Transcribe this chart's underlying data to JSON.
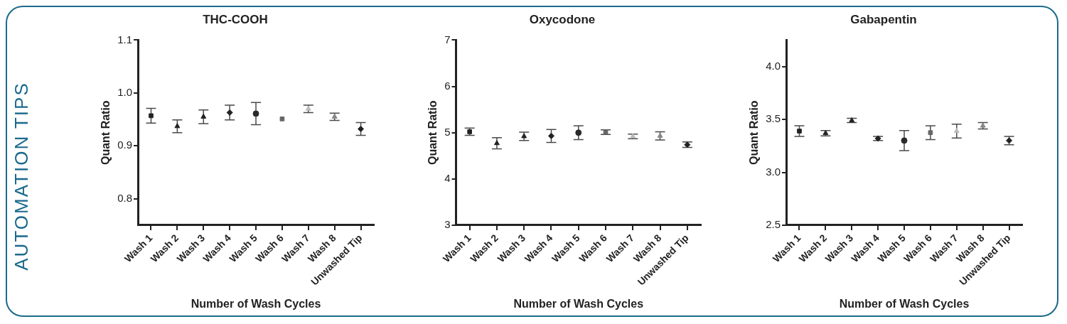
{
  "chart_data": [
    {
      "type": "scatter",
      "title": "THC-COOH",
      "xlabel": "Number of Wash Cycles",
      "ylabel": "Quant Ratio",
      "annotations": [
        "AUTOMATION TIPS"
      ],
      "categories": [
        "Wash 1",
        "Wash 2",
        "Wash 3",
        "Wash 4",
        "Wash 5",
        "Wash 6",
        "Wash 7",
        "Wash 8",
        "Unwashed Tip"
      ],
      "ylim": [
        0.75,
        1.1
      ],
      "yticks": [
        0.8,
        0.9,
        {
          "value": 1,
          "label": "1.0"
        },
        1.1
      ],
      "grid": false,
      "legend": false,
      "series": [
        {
          "color": "#222222",
          "marker": "square",
          "values": [
            0.957,
            null,
            null,
            null,
            null,
            null,
            null,
            null,
            null
          ],
          "errors": [
            0.014,
            null,
            null,
            null,
            null,
            null,
            null,
            null,
            null
          ]
        },
        {
          "color": "#222222",
          "marker": "triangle",
          "values": [
            null,
            0.937,
            null,
            null,
            null,
            null,
            null,
            null,
            null
          ],
          "errors": [
            null,
            0.012,
            null,
            null,
            null,
            null,
            null,
            null,
            null
          ]
        },
        {
          "color": "#222222",
          "marker": "triangle",
          "values": [
            null,
            null,
            0.955,
            null,
            null,
            null,
            null,
            null,
            null
          ],
          "errors": [
            null,
            null,
            0.013,
            null,
            null,
            null,
            null,
            null,
            null
          ]
        },
        {
          "color": "#222222",
          "marker": "diamond",
          "values": [
            null,
            null,
            null,
            0.963,
            null,
            null,
            null,
            null,
            null
          ],
          "errors": [
            null,
            null,
            null,
            0.014,
            null,
            null,
            null,
            null,
            null
          ]
        },
        {
          "color": "#2a2a2a",
          "marker": "circle",
          "values": [
            null,
            null,
            null,
            null,
            0.961,
            null,
            null,
            null,
            null
          ],
          "errors": [
            null,
            null,
            null,
            null,
            0.021,
            null,
            null,
            null,
            null
          ]
        },
        {
          "color": "#666666",
          "marker": "square",
          "values": [
            null,
            null,
            null,
            null,
            null,
            0.951,
            null,
            null,
            null
          ]
        },
        {
          "color": "#bbbbbb",
          "marker": "triangle",
          "values": [
            null,
            null,
            null,
            null,
            null,
            null,
            0.97,
            null,
            null
          ],
          "errors": [
            null,
            null,
            null,
            null,
            null,
            null,
            0.007,
            null,
            null
          ]
        },
        {
          "color": "#888888",
          "marker": "triangle",
          "values": [
            null,
            null,
            null,
            null,
            null,
            null,
            null,
            0.955,
            null
          ],
          "errors": [
            null,
            null,
            null,
            null,
            null,
            null,
            null,
            0.007,
            null
          ]
        },
        {
          "color": "#222222",
          "marker": "diamond",
          "values": [
            null,
            null,
            null,
            null,
            null,
            null,
            null,
            null,
            0.932
          ],
          "errors": [
            null,
            null,
            null,
            null,
            null,
            null,
            null,
            null,
            0.012
          ]
        }
      ]
    },
    {
      "type": "scatter",
      "title": "Oxycodone",
      "xlabel": "Number of Wash Cycles",
      "ylabel": "Quant Ratio",
      "categories": [
        "Wash 1",
        "Wash 2",
        "Wash 3",
        "Wash 4",
        "Wash 5",
        "Wash 6",
        "Wash 7",
        "Wash 8",
        "Unwashed Tip"
      ],
      "ylim": [
        3,
        7
      ],
      "yticks": [
        3,
        4,
        5,
        6,
        7
      ],
      "grid": false,
      "legend": false,
      "series": [
        {
          "color": "#222222",
          "marker": "square",
          "values": [
            5.02,
            null,
            null,
            null,
            null,
            null,
            null,
            null,
            null
          ],
          "errors": [
            0.08,
            null,
            null,
            null,
            null,
            null,
            null,
            null,
            null
          ]
        },
        {
          "color": "#222222",
          "marker": "triangle",
          "values": [
            null,
            4.77,
            null,
            null,
            null,
            null,
            null,
            null,
            null
          ],
          "errors": [
            null,
            0.12,
            null,
            null,
            null,
            null,
            null,
            null,
            null
          ]
        },
        {
          "color": "#222222",
          "marker": "triangle",
          "values": [
            null,
            null,
            4.92,
            null,
            null,
            null,
            null,
            null,
            null
          ],
          "errors": [
            null,
            null,
            0.09,
            null,
            null,
            null,
            null,
            null,
            null
          ]
        },
        {
          "color": "#222222",
          "marker": "diamond",
          "values": [
            null,
            null,
            null,
            4.93,
            null,
            null,
            null,
            null,
            null
          ],
          "errors": [
            null,
            null,
            null,
            0.14,
            null,
            null,
            null,
            null,
            null
          ]
        },
        {
          "color": "#2a2a2a",
          "marker": "circle",
          "values": [
            null,
            null,
            null,
            null,
            5.0,
            null,
            null,
            null,
            null
          ],
          "errors": [
            null,
            null,
            null,
            null,
            0.15,
            null,
            null,
            null,
            null
          ]
        },
        {
          "color": "#666666",
          "marker": "square",
          "values": [
            null,
            null,
            null,
            null,
            null,
            5.01,
            null,
            null,
            null
          ],
          "errors": [
            null,
            null,
            null,
            null,
            null,
            0.05,
            null,
            null,
            null
          ]
        },
        {
          "color": "#bbbbbb",
          "marker": "triangle",
          "values": [
            null,
            null,
            null,
            null,
            null,
            null,
            4.92,
            null,
            null
          ],
          "errors": [
            null,
            null,
            null,
            null,
            null,
            null,
            0.05,
            null,
            null
          ]
        },
        {
          "color": "#888888",
          "marker": "triangle",
          "values": [
            null,
            null,
            null,
            null,
            null,
            null,
            null,
            4.93,
            null
          ],
          "errors": [
            null,
            null,
            null,
            null,
            null,
            null,
            null,
            0.09,
            null
          ]
        },
        {
          "color": "#222222",
          "marker": "diamond",
          "values": [
            null,
            null,
            null,
            null,
            null,
            null,
            null,
            null,
            4.74
          ],
          "errors": [
            null,
            null,
            null,
            null,
            null,
            null,
            null,
            null,
            0.06
          ]
        }
      ]
    },
    {
      "type": "scatter",
      "title": "Gabapentin",
      "xlabel": "Number of Wash Cycles",
      "ylabel": "Quant Ratio",
      "categories": [
        "Wash 1",
        "Wash 2",
        "Wash 3",
        "Wash 4",
        "Wash 5",
        "Wash 6",
        "Wash 7",
        "Wash 8",
        "Unwashed Tip"
      ],
      "ylim": [
        2.5,
        4.25
      ],
      "yticks": [
        2.5,
        {
          "value": 3,
          "label": "3.0"
        },
        3.5,
        {
          "value": 4,
          "label": "4.0"
        }
      ],
      "grid": false,
      "legend": false,
      "series": [
        {
          "color": "#222222",
          "marker": "square",
          "values": [
            3.39,
            null,
            null,
            null,
            null,
            null,
            null,
            null,
            null
          ],
          "errors": [
            0.05,
            null,
            null,
            null,
            null,
            null,
            null,
            null,
            null
          ]
        },
        {
          "color": "#222222",
          "marker": "triangle",
          "values": [
            null,
            3.37,
            null,
            null,
            null,
            null,
            null,
            null,
            null
          ],
          "errors": [
            null,
            0.025,
            null,
            null,
            null,
            null,
            null,
            null,
            null
          ]
        },
        {
          "color": "#222222",
          "marker": "triangle",
          "values": [
            null,
            null,
            3.49,
            null,
            null,
            null,
            null,
            null,
            null
          ],
          "errors": [
            null,
            null,
            0.02,
            null,
            null,
            null,
            null,
            null,
            null
          ]
        },
        {
          "color": "#222222",
          "marker": "diamond",
          "values": [
            null,
            null,
            null,
            3.32,
            null,
            null,
            null,
            null,
            null
          ],
          "errors": [
            null,
            null,
            null,
            0.02,
            null,
            null,
            null,
            null,
            null
          ]
        },
        {
          "color": "#2a2a2a",
          "marker": "circle",
          "values": [
            null,
            null,
            null,
            null,
            3.3,
            null,
            null,
            null,
            null
          ],
          "errors": [
            null,
            null,
            null,
            null,
            0.095,
            null,
            null,
            null,
            null
          ]
        },
        {
          "color": "#666666",
          "marker": "square",
          "values": [
            null,
            null,
            null,
            null,
            null,
            3.375,
            null,
            null,
            null
          ],
          "errors": [
            null,
            null,
            null,
            null,
            null,
            0.065,
            null,
            null,
            null
          ]
        },
        {
          "color": "#bbbbbb",
          "marker": "triangle",
          "values": [
            null,
            null,
            null,
            null,
            null,
            null,
            3.39,
            null,
            null
          ],
          "errors": [
            null,
            null,
            null,
            null,
            null,
            null,
            0.065,
            null,
            null
          ]
        },
        {
          "color": "#888888",
          "marker": "triangle",
          "values": [
            null,
            null,
            null,
            null,
            null,
            null,
            null,
            3.44,
            null
          ],
          "errors": [
            null,
            null,
            null,
            null,
            null,
            null,
            null,
            0.03,
            null
          ]
        },
        {
          "color": "#222222",
          "marker": "diamond",
          "values": [
            null,
            null,
            null,
            null,
            null,
            null,
            null,
            null,
            3.3
          ],
          "errors": [
            null,
            null,
            null,
            null,
            null,
            null,
            null,
            null,
            0.04
          ]
        }
      ]
    }
  ]
}
